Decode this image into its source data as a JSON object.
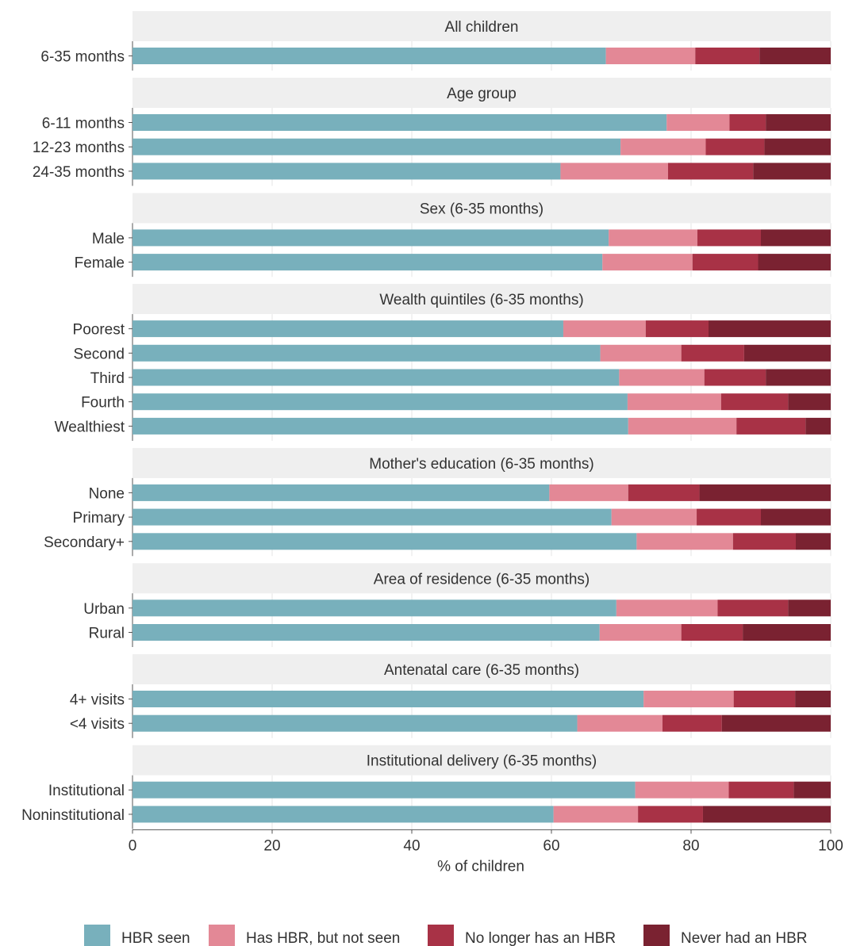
{
  "chart_data": {
    "type": "bar",
    "orientation": "horizontal",
    "stacked": true,
    "xlabel": "% of children",
    "xlim": [
      0,
      100
    ],
    "xticks": [
      0,
      20,
      40,
      60,
      80,
      100
    ],
    "grid": true,
    "legend_position": "bottom",
    "series": [
      {
        "name": "HBR seen",
        "color": "#78b0bc"
      },
      {
        "name": "Has HBR, but not seen",
        "color": "#e38896"
      },
      {
        "name": "No longer has an HBR",
        "color": "#a83246"
      },
      {
        "name": "Never had an HBR",
        "color": "#7a2231"
      }
    ],
    "panels": [
      {
        "title": "All children",
        "rows": [
          {
            "label": "6-35 months",
            "values": [
              67.8,
              12.8,
              9.2,
              10.2
            ]
          }
        ]
      },
      {
        "title": "Age group",
        "rows": [
          {
            "label": "6-11 months",
            "values": [
              76.5,
              9.0,
              5.2,
              9.3
            ]
          },
          {
            "label": "12-23 months",
            "values": [
              69.9,
              12.2,
              8.4,
              9.5
            ]
          },
          {
            "label": "24-35 months",
            "values": [
              61.3,
              15.4,
              12.2,
              11.1
            ]
          }
        ]
      },
      {
        "title": "Sex (6-35 months)",
        "rows": [
          {
            "label": "Male",
            "values": [
              68.2,
              12.7,
              9.1,
              10.0
            ]
          },
          {
            "label": "Female",
            "values": [
              67.3,
              12.9,
              9.4,
              10.4
            ]
          }
        ]
      },
      {
        "title": "Wealth quintiles (6-35 months)",
        "rows": [
          {
            "label": "Poorest",
            "values": [
              61.7,
              11.8,
              9.0,
              17.5
            ]
          },
          {
            "label": "Second",
            "values": [
              67.0,
              11.6,
              9.0,
              12.4
            ]
          },
          {
            "label": "Third",
            "values": [
              69.7,
              12.2,
              8.8,
              9.3
            ]
          },
          {
            "label": "Fourth",
            "values": [
              70.9,
              13.4,
              9.6,
              6.1
            ]
          },
          {
            "label": "Wealthiest",
            "values": [
              71.0,
              15.5,
              9.9,
              3.6
            ]
          }
        ]
      },
      {
        "title": "Mother's education (6-35 months)",
        "rows": [
          {
            "label": "None",
            "values": [
              59.7,
              11.3,
              10.2,
              18.8
            ]
          },
          {
            "label": "Primary",
            "values": [
              68.6,
              12.2,
              9.2,
              10.0
            ]
          },
          {
            "label": "Secondary+",
            "values": [
              72.2,
              13.8,
              9.0,
              5.0
            ]
          }
        ]
      },
      {
        "title": "Area of residence (6-35 months)",
        "rows": [
          {
            "label": "Urban",
            "values": [
              69.3,
              14.5,
              10.1,
              6.1
            ]
          },
          {
            "label": "Rural",
            "values": [
              66.9,
              11.7,
              8.8,
              12.6
            ]
          }
        ]
      },
      {
        "title": "Antenatal care (6-35 months)",
        "rows": [
          {
            "label": "4+ visits",
            "values": [
              73.2,
              12.9,
              8.8,
              5.1
            ]
          },
          {
            "label": "<4 visits",
            "values": [
              63.7,
              12.2,
              8.5,
              15.6
            ]
          }
        ]
      },
      {
        "title": "Institutional delivery (6-35 months)",
        "rows": [
          {
            "label": "Institutional",
            "values": [
              72.0,
              13.4,
              9.3,
              5.3
            ]
          },
          {
            "label": "Noninstitutional",
            "values": [
              60.3,
              12.1,
              9.3,
              18.3
            ]
          }
        ]
      }
    ]
  }
}
